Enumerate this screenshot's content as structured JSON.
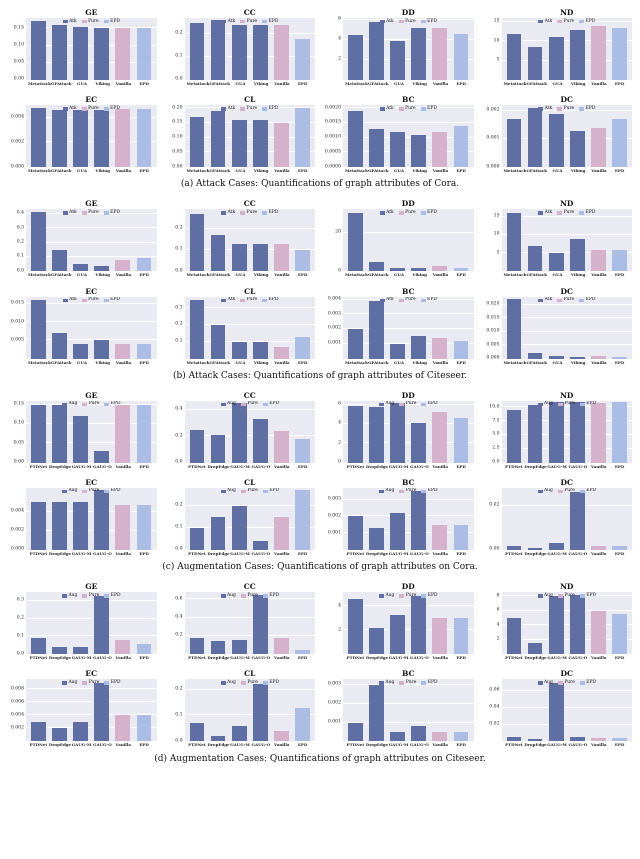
{
  "palette": {
    "series": "#5f6fa3",
    "pure": "#d5b1cb",
    "epd": "#abbde4",
    "plot_bg": "#eaeaf2",
    "gridline": "#ffffff"
  },
  "chart_data": [
    {
      "type": "bar",
      "caption": "(a) Attack Cases: Quantifications of graph attributes of Cora.",
      "legend": [
        "Atk",
        "Pure",
        "EPD"
      ],
      "categories": [
        "Metattack",
        "GFAttack",
        "GUA",
        "Viking",
        "Vanilla",
        "EPD"
      ],
      "charts": [
        {
          "title": "GE",
          "ymax": 0.18,
          "ticks": [
            0,
            0.05,
            0.1,
            0.15
          ],
          "tick_labels": [
            "0.00",
            "0.05",
            "0.10",
            "0.15"
          ],
          "values": [
            0.17,
            0.16,
            0.155,
            0.15,
            0.15,
            0.15
          ]
        },
        {
          "title": "CC",
          "ymax": 0.27,
          "ticks": [
            0,
            0.1,
            0.2
          ],
          "tick_labels": [
            "0.0",
            "0.1",
            "0.2"
          ],
          "values": [
            0.25,
            0.26,
            0.24,
            0.24,
            0.24,
            0.18
          ]
        },
        {
          "title": "DD",
          "ymax": 6.2,
          "ticks": [
            2,
            4,
            6
          ],
          "tick_labels": [
            "2",
            "4",
            "6"
          ],
          "values": [
            4.5,
            5.8,
            3.9,
            5.2,
            5.2,
            4.6
          ]
        },
        {
          "title": "ND",
          "ymax": 16,
          "ticks": [
            5,
            10,
            15
          ],
          "tick_labels": [
            "5",
            "10",
            "15"
          ],
          "values": [
            12,
            8.5,
            11,
            13,
            14,
            13.5
          ]
        },
        {
          "title": "EC",
          "ymax": 0.005,
          "ticks": [
            0,
            0.002,
            0.004
          ],
          "tick_labels": [
            "0.000",
            "0.002",
            "0.004"
          ],
          "values": [
            0.0048,
            0.0046,
            0.0046,
            0.0046,
            0.0047,
            0.0047
          ]
        },
        {
          "title": "CL",
          "ymax": 0.21,
          "ticks": [
            0,
            0.05,
            0.1,
            0.15,
            0.2
          ],
          "tick_labels": [
            "0.00",
            "0.05",
            "0.10",
            "0.15",
            "0.20"
          ],
          "values": [
            0.17,
            0.19,
            0.16,
            0.16,
            0.15,
            0.2
          ]
        },
        {
          "title": "BC",
          "ymax": 0.0021,
          "ticks": [
            0,
            0.0005,
            0.001,
            0.0015,
            0.002
          ],
          "tick_labels": [
            "0.0000",
            "0.0005",
            "0.0010",
            "0.0015",
            "0.0020"
          ],
          "values": [
            0.0019,
            0.0013,
            0.0012,
            0.0011,
            0.0012,
            0.0014
          ]
        },
        {
          "title": "DC",
          "ymax": 0.0022,
          "ticks": [
            0,
            0.001,
            0.002
          ],
          "tick_labels": [
            "0.000",
            "0.001",
            "0.002"
          ],
          "values": [
            0.0017,
            0.0021,
            0.0019,
            0.0013,
            0.0014,
            0.0017
          ]
        }
      ]
    },
    {
      "type": "bar",
      "caption": "(b) Attack Cases: Quantifications of graph attributes of Citeseer.",
      "legend": [
        "Atk",
        "Pure",
        "EPD"
      ],
      "categories": [
        "Metattack",
        "GFAttack",
        "GUA",
        "Viking",
        "Vanilla",
        "EPD"
      ],
      "charts": [
        {
          "title": "GE",
          "ymax": 0.43,
          "ticks": [
            0,
            0.1,
            0.2,
            0.3,
            0.4
          ],
          "tick_labels": [
            "0.0",
            "0.1",
            "0.2",
            "0.3",
            "0.4"
          ],
          "values": [
            0.41,
            0.15,
            0.05,
            0.04,
            0.08,
            0.09
          ]
        },
        {
          "title": "CC",
          "ymax": 0.29,
          "ticks": [
            0,
            0.1,
            0.2
          ],
          "tick_labels": [
            "0.0",
            "0.1",
            "0.2"
          ],
          "values": [
            0.27,
            0.17,
            0.13,
            0.13,
            0.13,
            0.1
          ]
        },
        {
          "title": "DD",
          "ymax": 32,
          "ticks": [
            0,
            20
          ],
          "tick_labels": [
            "0",
            "20"
          ],
          "values": [
            30,
            5,
            2,
            2,
            3,
            2
          ]
        },
        {
          "title": "ND",
          "ymax": 17,
          "ticks": [
            5,
            10,
            15
          ],
          "tick_labels": [
            "5",
            "10",
            "15"
          ],
          "values": [
            16,
            7,
            5,
            9,
            6,
            6
          ]
        },
        {
          "title": "EC",
          "ymax": 0.017,
          "ticks": [
            0.005,
            0.01,
            0.015
          ],
          "tick_labels": [
            "0.005",
            "0.010",
            "0.015"
          ],
          "values": [
            0.016,
            0.007,
            0.004,
            0.005,
            0.004,
            0.004
          ]
        },
        {
          "title": "CL",
          "ymax": 0.37,
          "ticks": [
            0.1,
            0.2,
            0.3
          ],
          "tick_labels": [
            "0.1",
            "0.2",
            "0.3"
          ],
          "values": [
            0.35,
            0.2,
            0.1,
            0.1,
            0.07,
            0.13
          ]
        },
        {
          "title": "BC",
          "ymax": 0.0042,
          "ticks": [
            0.001,
            0.002,
            0.003,
            0.004
          ],
          "tick_labels": [
            "0.001",
            "0.002",
            "0.003",
            "0.004"
          ],
          "values": [
            0.002,
            0.0039,
            0.001,
            0.0015,
            0.0014,
            0.0012
          ]
        },
        {
          "title": "DC",
          "ymax": 0.023,
          "ticks": [
            0,
            0.005,
            0.01,
            0.015,
            0.02
          ],
          "tick_labels": [
            "0.000",
            "0.005",
            "0.010",
            "0.015",
            "0.020"
          ],
          "values": [
            0.022,
            0.002,
            0.001,
            0.0005,
            0.001,
            0.0005
          ]
        }
      ]
    },
    {
      "type": "bar",
      "caption": "(c) Augmentation Cases: Quantifications of graph attributes on Cora.",
      "legend": [
        "Aug",
        "Pure",
        "EPD"
      ],
      "categories": [
        "PTDNet",
        "DropEdge",
        "GAUG-M",
        "GAUG-O",
        "Vanilla",
        "EPD"
      ],
      "charts": [
        {
          "title": "GE",
          "ymax": 0.16,
          "ticks": [
            0,
            0.05,
            0.1,
            0.15
          ],
          "tick_labels": [
            "0.00",
            "0.05",
            "0.10",
            "0.15"
          ],
          "values": [
            0.15,
            0.15,
            0.12,
            0.03,
            0.15,
            0.15
          ]
        },
        {
          "title": "CC",
          "ymax": 0.47,
          "ticks": [
            0,
            0.2,
            0.4
          ],
          "tick_labels": [
            "0.0",
            "0.2",
            "0.4"
          ],
          "values": [
            0.25,
            0.21,
            0.45,
            0.33,
            0.24,
            0.18
          ]
        },
        {
          "title": "DD",
          "ymax": 6.4,
          "ticks": [
            0,
            2,
            4,
            6
          ],
          "tick_labels": [
            "0",
            "2",
            "4",
            "6"
          ],
          "values": [
            5.9,
            5.8,
            6.2,
            4.1,
            5.2,
            4.6
          ]
        },
        {
          "title": "ND",
          "ymax": 11.2,
          "ticks": [
            0,
            2.5,
            5.0,
            7.5,
            10.0
          ],
          "tick_labels": [
            "0.0",
            "2.5",
            "5.0",
            "7.5",
            "10.0"
          ],
          "values": [
            9.5,
            10.5,
            11,
            11,
            10.8,
            11
          ]
        },
        {
          "title": "EC",
          "ymax": 0.0065,
          "ticks": [
            0,
            0.002,
            0.004
          ],
          "tick_labels": [
            "0.000",
            "0.002",
            "0.004"
          ],
          "values": [
            0.005,
            0.005,
            0.005,
            0.0063,
            0.0047,
            0.0047
          ]
        },
        {
          "title": "CL",
          "ymax": 0.28,
          "ticks": [
            0,
            0.1,
            0.2
          ],
          "tick_labels": [
            "0.0",
            "0.1",
            "0.2"
          ],
          "values": [
            0.1,
            0.15,
            0.2,
            0.04,
            0.15,
            0.27
          ]
        },
        {
          "title": "BC",
          "ymax": 0.0037,
          "ticks": [
            0.001,
            0.002,
            0.003
          ],
          "tick_labels": [
            "0.001",
            "0.002",
            "0.003"
          ],
          "values": [
            0.002,
            0.0013,
            0.0022,
            0.0035,
            0.0015,
            0.0015
          ]
        },
        {
          "title": "DC",
          "ymax": 0.028,
          "ticks": [
            0,
            0.02
          ],
          "tick_labels": [
            "0.00",
            "0.02"
          ],
          "values": [
            0.002,
            0.001,
            0.003,
            0.026,
            0.002,
            0.002
          ]
        }
      ]
    },
    {
      "type": "bar",
      "caption": "(d) Augmentation Cases: Quantifications of graph attributes on Citeseer.",
      "legend": [
        "Aug",
        "Pure",
        "EPD"
      ],
      "categories": [
        "PTDNet",
        "DropEdge",
        "GAUG-M",
        "GAUG-O",
        "Vanilla",
        "EPD"
      ],
      "charts": [
        {
          "title": "GE",
          "ymax": 0.35,
          "ticks": [
            0,
            0.1,
            0.2,
            0.3
          ],
          "tick_labels": [
            "0.0",
            "0.1",
            "0.2",
            "0.3"
          ],
          "values": [
            0.09,
            0.04,
            0.04,
            0.33,
            0.08,
            0.06
          ]
        },
        {
          "title": "CC",
          "ymax": 0.68,
          "ticks": [
            0.2,
            0.4,
            0.6
          ],
          "tick_labels": [
            "0.2",
            "0.4",
            "0.6"
          ],
          "values": [
            0.18,
            0.14,
            0.15,
            0.65,
            0.18,
            0.05
          ]
        },
        {
          "title": "DD",
          "ymax": 5.2,
          "ticks": [
            2,
            4
          ],
          "tick_labels": [
            "2",
            "4"
          ],
          "values": [
            4.6,
            2.2,
            3.3,
            4.9,
            3.0,
            3.0
          ]
        },
        {
          "title": "ND",
          "ymax": 8.6,
          "ticks": [
            2,
            4,
            6,
            8
          ],
          "tick_labels": [
            "2",
            "4",
            "6",
            "8"
          ],
          "values": [
            5,
            1.5,
            8,
            8.2,
            6,
            5.5
          ]
        },
        {
          "title": "EC",
          "ymax": 0.0095,
          "ticks": [
            0.002,
            0.004,
            0.006,
            0.008
          ],
          "tick_labels": [
            "0.002",
            "0.004",
            "0.006",
            "0.008"
          ],
          "values": [
            0.003,
            0.002,
            0.003,
            0.009,
            0.004,
            0.004
          ]
        },
        {
          "title": "CL",
          "ymax": 0.24,
          "ticks": [
            0,
            0.1,
            0.2
          ],
          "tick_labels": [
            "0.0",
            "0.1",
            "0.2"
          ],
          "values": [
            0.07,
            0.02,
            0.06,
            0.22,
            0.04,
            0.13
          ]
        },
        {
          "title": "BC",
          "ymax": 0.0033,
          "ticks": [
            0.001,
            0.002,
            0.003
          ],
          "tick_labels": [
            "0.001",
            "0.002",
            "0.003"
          ],
          "values": [
            0.001,
            0.003,
            0.0005,
            0.0008,
            0.0005,
            0.0005
          ]
        },
        {
          "title": "DC",
          "ymax": 0.074,
          "ticks": [
            0.02,
            0.04,
            0.06
          ],
          "tick_labels": [
            "0.02",
            "0.04",
            "0.06"
          ],
          "values": [
            0.005,
            0.003,
            0.07,
            0.005,
            0.004,
            0.004
          ]
        }
      ]
    }
  ]
}
